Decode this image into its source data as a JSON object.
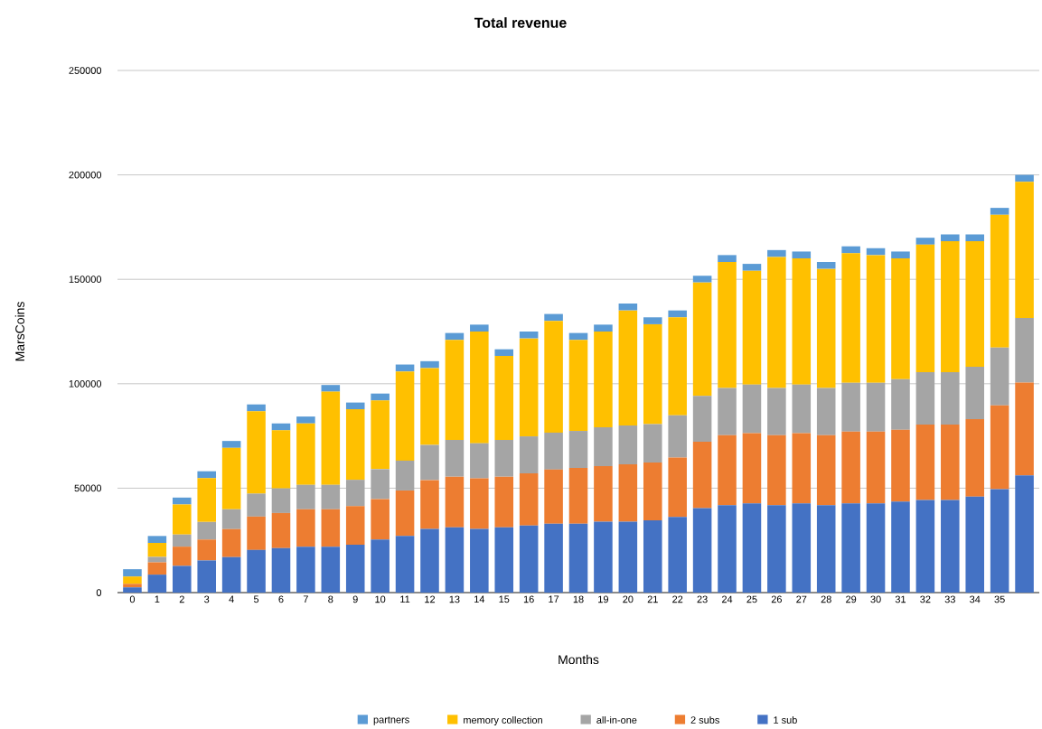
{
  "chart_data": {
    "type": "bar",
    "stacked": true,
    "title": "Total revenue",
    "xlabel": "Months",
    "ylabel": "MarsCoins",
    "categories": [
      "0",
      "1",
      "2",
      "3",
      "4",
      "5",
      "6",
      "7",
      "8",
      "9",
      "10",
      "11",
      "12",
      "13",
      "14",
      "15",
      "16",
      "17",
      "18",
      "19",
      "20",
      "21",
      "22",
      "23",
      "24",
      "25",
      "26",
      "27",
      "28",
      "29",
      "30",
      "31",
      "32",
      "33",
      "34",
      "35",
      null
    ],
    "series": [
      {
        "name": "1 sub",
        "color": "#4472c4",
        "values": [
          2500,
          8600,
          12800,
          15400,
          17000,
          20400,
          21300,
          22000,
          22000,
          22900,
          25400,
          27100,
          30500,
          31200,
          30500,
          31200,
          32100,
          33000,
          33000,
          33900,
          33900,
          34600,
          36200,
          40400,
          41900,
          42700,
          41900,
          42700,
          41900,
          42700,
          42700,
          43600,
          44300,
          44300,
          46000,
          49500,
          56100
        ]
      },
      {
        "name": "2 subs",
        "color": "#ed7d31",
        "values": [
          1700,
          5900,
          9200,
          10000,
          13400,
          16000,
          16800,
          17900,
          17900,
          18500,
          19400,
          21800,
          23400,
          24300,
          24200,
          24300,
          25000,
          25900,
          26700,
          26700,
          27500,
          27700,
          28500,
          31800,
          33500,
          33600,
          33500,
          33600,
          33500,
          34400,
          34400,
          34400,
          36100,
          36100,
          37000,
          40100,
          44500
        ]
      },
      {
        "name": "all-in-one",
        "color": "#a5a5a5",
        "values": [
          0,
          2600,
          5800,
          8400,
          9500,
          11000,
          11800,
          11700,
          11700,
          12600,
          14300,
          14300,
          16800,
          17600,
          16800,
          17600,
          17700,
          17700,
          17700,
          18500,
          18600,
          18400,
          20200,
          22000,
          22600,
          23300,
          22600,
          23300,
          22600,
          23300,
          23300,
          24200,
          25100,
          25100,
          25100,
          27700,
          30900
        ]
      },
      {
        "name": "memory collection",
        "color": "#ffc000",
        "values": [
          3500,
          6700,
          14400,
          21000,
          29400,
          39400,
          27800,
          29400,
          44600,
          33800,
          32900,
          42700,
          36800,
          47900,
          53500,
          40200,
          46900,
          53500,
          43600,
          45900,
          55100,
          47800,
          46900,
          54300,
          60300,
          54500,
          62700,
          60400,
          57000,
          62100,
          61200,
          57800,
          61100,
          62700,
          60100,
          63600,
          65200
        ]
      },
      {
        "name": "partners",
        "color": "#5b9bd5",
        "values": [
          3500,
          3300,
          3300,
          3300,
          3300,
          3300,
          3300,
          3300,
          3200,
          3200,
          3300,
          3300,
          3300,
          3300,
          3300,
          3200,
          3300,
          3300,
          3300,
          3300,
          3300,
          3300,
          3300,
          3200,
          3300,
          3300,
          3300,
          3300,
          3300,
          3300,
          3300,
          3300,
          3300,
          3300,
          3300,
          3300,
          3300
        ]
      }
    ],
    "ylim": [
      0,
      250000
    ],
    "yticks": [
      0,
      50000,
      100000,
      150000,
      200000,
      250000
    ],
    "grid": "y",
    "legend": "bottom"
  }
}
